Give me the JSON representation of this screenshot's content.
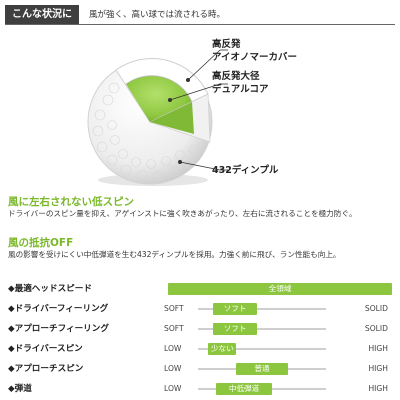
{
  "header": {
    "tag": "こんな状況に",
    "text": "風が強く、高い球では流される時。"
  },
  "figure": {
    "callouts": [
      {
        "line1": "高反発",
        "line2": "アイオノマーカバー"
      },
      {
        "line1": "高反発大径",
        "line2": "デュアルコア"
      },
      {
        "line1": "432ディンプル",
        "line2": ""
      }
    ],
    "colors": {
      "core": "#8cc63f",
      "core_dark": "#6fa628",
      "cover": "#ffffff",
      "accent": "#7ab82a"
    }
  },
  "sections": [
    {
      "title": "風に左右されない低スピン",
      "body": "ドライバーのスピン量を抑え、アゲインストに強く吹きあがったり、左右に流されることを極力防ぐ。"
    },
    {
      "title": "風の抵抗OFF",
      "body": "風の影響を受けにくい中低弾道を生む432ディンプルを採用。力強く前に飛び、ラン性能も向上。"
    }
  ],
  "specs": [
    {
      "label": "◆最適ヘッドスピード",
      "left": "",
      "right": "",
      "pill": "全領域",
      "fill": {
        "start": 0.0,
        "end": 1.0
      }
    },
    {
      "label": "◆ドライバーフィーリング",
      "left": "SOFT",
      "right": "SOLID",
      "pill": "ソフト",
      "fill": {
        "start": 0.12,
        "end": 0.46
      }
    },
    {
      "label": "◆アプローチフィーリング",
      "left": "SOFT",
      "right": "SOLID",
      "pill": "ソフト",
      "fill": {
        "start": 0.12,
        "end": 0.46
      }
    },
    {
      "label": "◆ドライバースピン",
      "left": "LOW",
      "right": "HIGH",
      "pill": "少ない",
      "fill": {
        "start": 0.08,
        "end": 0.3
      }
    },
    {
      "label": "◆アプローチスピン",
      "left": "LOW",
      "right": "HIGH",
      "pill": "普通",
      "fill": {
        "start": 0.3,
        "end": 0.7
      }
    },
    {
      "label": "◆弾道",
      "left": "LOW",
      "right": "HIGH",
      "pill": "中低弾道",
      "fill": {
        "start": 0.14,
        "end": 0.58
      }
    }
  ]
}
